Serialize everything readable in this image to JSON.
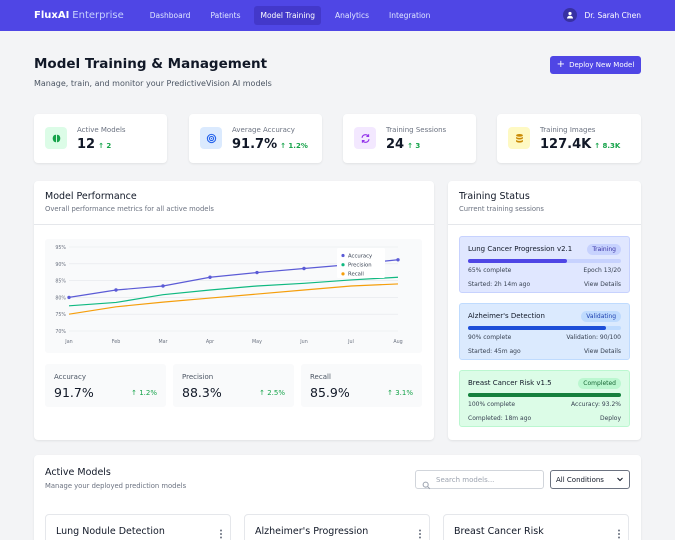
{
  "nav": {
    "brand": "FluxAI",
    "brand_sub": "Enterprise",
    "links": [
      "Dashboard",
      "Patients",
      "Model Training",
      "Analytics",
      "Integration"
    ],
    "active_link": "Model Training",
    "user_name": "Dr. Sarah Chen"
  },
  "header": {
    "title": "Model Training & Management",
    "subtitle": "Manage, train, and monitor your PredictiveVision AI models",
    "deploy_label": "Deploy New Model"
  },
  "stats": [
    {
      "label": "Active Models",
      "value": "12",
      "change": "2",
      "icon": "brain-icon",
      "bg": "#dcfce7",
      "fg": "#16a34a"
    },
    {
      "label": "Average Accuracy",
      "value": "91.7%",
      "change": "1.2%",
      "icon": "target-icon",
      "bg": "#dbeafe",
      "fg": "#2563eb"
    },
    {
      "label": "Training Sessions",
      "value": "24",
      "change": "3",
      "icon": "sync-icon",
      "bg": "#f3e8ff",
      "fg": "#9333ea"
    },
    {
      "label": "Training Images",
      "value": "127.4K",
      "change": "8.3K",
      "icon": "database-icon",
      "bg": "#fef9c3",
      "fg": "#ca8a04"
    }
  ],
  "performance": {
    "title": "Model Performance",
    "subtitle": "Overall performance metrics for all active models",
    "metrics": [
      {
        "label": "Accuracy",
        "value": "91.7%",
        "change": "↑ 1.2%"
      },
      {
        "label": "Precision",
        "value": "88.3%",
        "change": "↑ 2.5%"
      },
      {
        "label": "Recall",
        "value": "85.9%",
        "change": "↑ 3.1%"
      }
    ]
  },
  "chart_data": {
    "type": "line",
    "categories": [
      "Jan",
      "Feb",
      "Mar",
      "Apr",
      "May",
      "Jun",
      "Jul",
      "Aug"
    ],
    "series": [
      {
        "name": "Accuracy",
        "color": "#5b5bd6",
        "values": [
          80,
          82.2,
          83.4,
          86,
          87.4,
          88.6,
          89.8,
          91.2
        ]
      },
      {
        "name": "Precision",
        "color": "#10b981",
        "values": [
          77.5,
          78.5,
          80.8,
          82.2,
          83.4,
          84.2,
          85.2,
          86
        ]
      },
      {
        "name": "Recall",
        "color": "#f59e0b",
        "values": [
          75,
          77.2,
          78.6,
          79.8,
          81,
          82.2,
          83.4,
          84
        ]
      }
    ],
    "ylim": [
      70,
      95
    ],
    "yticks": [
      "70%",
      "75%",
      "80%",
      "85%",
      "90%",
      "95%"
    ],
    "ytick_values": [
      70,
      75,
      80,
      85,
      90,
      95
    ],
    "grid": true,
    "legend": "top-right"
  },
  "training": {
    "title": "Training Status",
    "subtitle": "Current training sessions",
    "sessions": [
      {
        "name": "Lung Cancer Progression v2.1",
        "badge": "Training",
        "progress": 0.65,
        "progress_label": "65% complete",
        "right_label": "Epoch 13/20",
        "status_label": "Started: 2h 14m ago",
        "action": "View Details"
      },
      {
        "name": "Alzheimer's Detection",
        "badge": "Validating",
        "progress": 0.9,
        "progress_label": "90% complete",
        "right_label": "Validation: 90/100",
        "status_label": "Started: 45m ago",
        "action": "View Details"
      },
      {
        "name": "Breast Cancer Risk v1.5",
        "badge": "Completed",
        "progress": 1.0,
        "progress_label": "100% complete",
        "right_label": "Accuracy: 93.2%",
        "status_label": "Completed: 18m ago",
        "action": "Deploy"
      }
    ]
  },
  "active_models": {
    "title": "Active Models",
    "subtitle": "Manage your deployed prediction models",
    "search_placeholder": "Search models...",
    "filter_value": "All Conditions",
    "cards": [
      "Lung Nodule Detection",
      "Alzheimer's Progression",
      "Breast Cancer Risk"
    ]
  }
}
